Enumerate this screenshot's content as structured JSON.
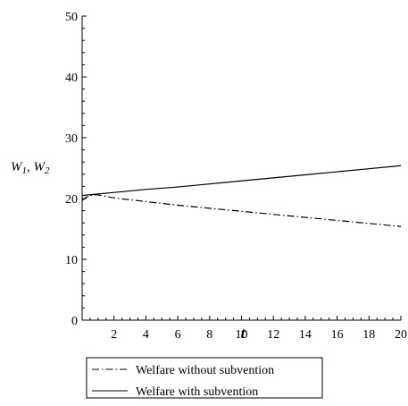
{
  "chart_data": {
    "type": "line",
    "title": "",
    "xlabel": "t",
    "ylabel_parts": {
      "w1": "W",
      "w1_sub": "1",
      "sep": ", ",
      "w2": "W",
      "w2_sub": "2"
    },
    "xlim": [
      0,
      20
    ],
    "ylim": [
      0,
      50
    ],
    "x_ticks": [
      2,
      4,
      6,
      8,
      10,
      12,
      14,
      16,
      18,
      20
    ],
    "y_ticks": [
      0,
      10,
      20,
      30,
      40,
      50
    ],
    "grid": false,
    "legend_placement": "bottom",
    "series": [
      {
        "name": "Welfare without subvention",
        "line_style": "dash-dot",
        "color": "#000000",
        "x": [
          0,
          0.25,
          0.5,
          0.75,
          1,
          2,
          4,
          6,
          8,
          10,
          12,
          14,
          16,
          18,
          20
        ],
        "y": [
          19.7,
          20.2,
          20.5,
          20.6,
          20.6,
          20.1,
          19.5,
          18.9,
          18.4,
          17.9,
          17.4,
          16.9,
          16.4,
          15.9,
          15.4
        ]
      },
      {
        "name": "Welfare with subvention",
        "line_style": "solid",
        "color": "#000000",
        "x": [
          0,
          2,
          4,
          6,
          8,
          10,
          12,
          14,
          16,
          18,
          20
        ],
        "y": [
          20.5,
          21.0,
          21.5,
          21.9,
          22.4,
          22.9,
          23.4,
          23.9,
          24.4,
          24.9,
          25.4
        ]
      }
    ]
  }
}
